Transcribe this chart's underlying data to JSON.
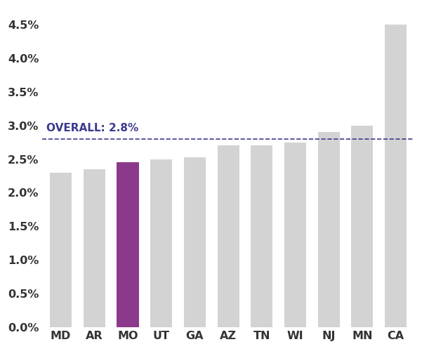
{
  "categories": [
    "MD",
    "AR",
    "MO",
    "UT",
    "GA",
    "AZ",
    "TN",
    "WI",
    "NJ",
    "MN",
    "CA"
  ],
  "values": [
    0.023,
    0.0235,
    0.0245,
    0.025,
    0.0253,
    0.027,
    0.027,
    0.0275,
    0.029,
    0.03,
    0.045
  ],
  "bar_colors": [
    "#d3d3d3",
    "#d3d3d3",
    "#8B3A8B",
    "#d3d3d3",
    "#d3d3d3",
    "#d3d3d3",
    "#d3d3d3",
    "#d3d3d3",
    "#d3d3d3",
    "#d3d3d3",
    "#d3d3d3"
  ],
  "overall_value": 0.028,
  "overall_label": "OVERALL: 2.8%",
  "overall_line_color": "#3B3A8F",
  "overall_label_color": "#3B3A8F",
  "overall_label_fontsize": 11,
  "ylim": [
    0,
    0.0475
  ],
  "yticks": [
    0.0,
    0.005,
    0.01,
    0.015,
    0.02,
    0.025,
    0.03,
    0.035,
    0.04,
    0.045
  ],
  "background_color": "#ffffff",
  "bar_width": 0.65,
  "tick_fontsize": 11.5,
  "label_fontsize": 11
}
